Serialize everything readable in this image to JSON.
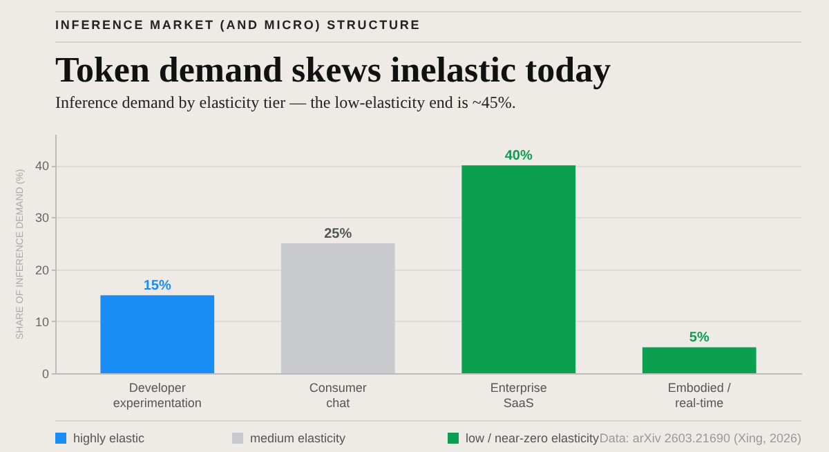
{
  "chart_data": {
    "type": "bar",
    "title": "Token demand skews inelastic today",
    "subtitle": "Inference demand by elasticity tier — the low-elasticity end is ~45%.",
    "ylabel": "SHARE OF INFERENCE DEMAND (%)",
    "annotations": [
      "INFERENCE MARKET (AND MICRO) STRUCTURE",
      "Data: arXiv 2603.21690 (Xing, 2026)"
    ],
    "categories": [
      "Developer\nexperimentation",
      "Consumer\nchat",
      "Enterprise\nSaaS",
      "Embodied /\nreal-time"
    ],
    "series": [
      {
        "name": "highly elastic",
        "color": "#1a8cf5",
        "values": [
          15,
          null,
          null,
          null
        ],
        "value_labels": [
          "15%",
          null,
          null,
          null
        ]
      },
      {
        "name": "medium elasticity",
        "color": "#c9cacd",
        "values": [
          null,
          25,
          null,
          null
        ],
        "value_labels": [
          null,
          "25%",
          null,
          null
        ]
      },
      {
        "name": "low / near-zero elasticity",
        "color": "#0aa04f",
        "values": [
          null,
          null,
          40,
          5
        ],
        "value_labels": [
          null,
          null,
          "40%",
          "5%"
        ]
      }
    ],
    "ylim": [
      0,
      46
    ],
    "yticks": [
      0,
      10,
      20,
      30,
      40
    ],
    "grid": "y",
    "legend": "bottom left"
  }
}
